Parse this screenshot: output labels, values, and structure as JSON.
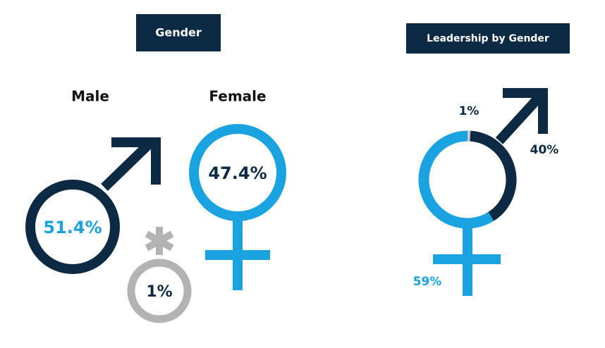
{
  "chart_data": [
    {
      "type": "symbols",
      "title": "Gender",
      "categories": [
        "Male",
        "Female",
        null
      ],
      "values": [
        51.4,
        47.4,
        1
      ],
      "value_labels": [
        "51.4%",
        "47.4%",
        "1%"
      ],
      "colors": [
        "#0d2a45",
        "#1aa3e0",
        "#b3b3b3"
      ]
    },
    {
      "type": "donut",
      "title": "Leadership by Gender",
      "values": [
        1,
        40,
        59
      ],
      "value_labels": [
        "1%",
        "40%",
        "59%"
      ],
      "colors": [
        "#c8c8c8",
        "#0d2a45",
        "#1aa3e0"
      ]
    }
  ]
}
